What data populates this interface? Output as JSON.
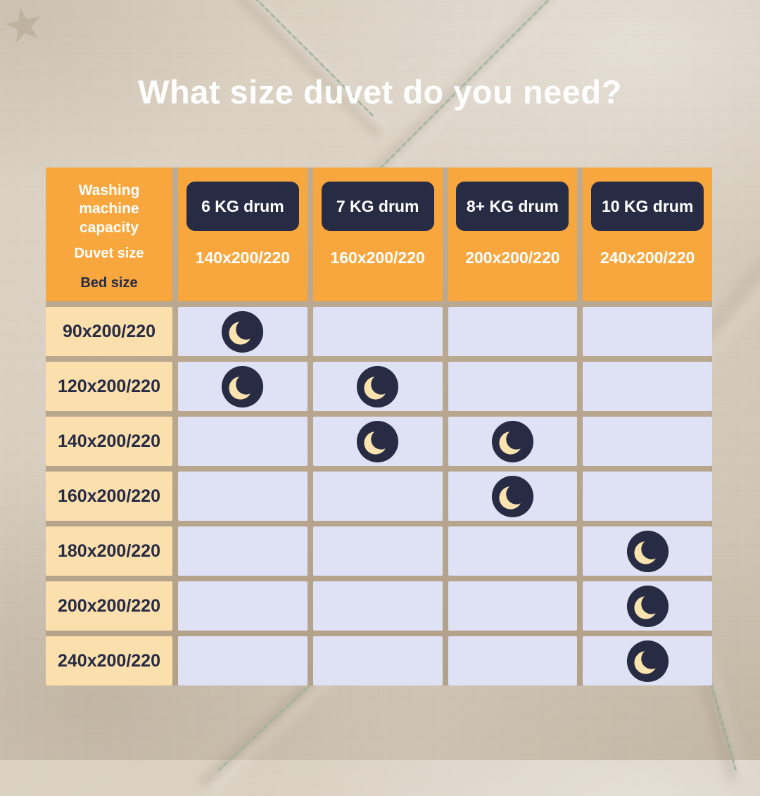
{
  "title": "What size duvet do you need?",
  "colors": {
    "orange": "#f8a73e",
    "navy": "#272c44",
    "row_label_cream": "#fbdfad",
    "cell_lavender": "#dfe1f5",
    "moon_cream": "#fae3ae",
    "stitch_green": "#9db39b",
    "background_beige": "#d6ccbc",
    "grid_gap_tan": "#b8a68d",
    "title_white": "#ffffff"
  },
  "icons": {
    "star_watermark": "★",
    "cell_marker": "crescent-moon"
  },
  "chart_data": {
    "type": "table",
    "title": "What size duvet do you need?",
    "corner": {
      "capacity_label": "Washing machine capacity",
      "duvet_label": "Duvet size",
      "bed_label": "Bed size"
    },
    "columns": [
      {
        "drum": "6 KG drum",
        "duvet_size": "140x200/220"
      },
      {
        "drum": "7 KG drum",
        "duvet_size": "160x200/220"
      },
      {
        "drum": "8+ KG drum",
        "duvet_size": "200x200/220"
      },
      {
        "drum": "10 KG drum",
        "duvet_size": "240x200/220"
      }
    ],
    "rows": [
      {
        "bed_size": "90x200/220",
        "moons": [
          1,
          0,
          0,
          0
        ]
      },
      {
        "bed_size": "120x200/220",
        "moons": [
          1,
          1,
          0,
          0
        ]
      },
      {
        "bed_size": "140x200/220",
        "moons": [
          0,
          1,
          1,
          0
        ]
      },
      {
        "bed_size": "160x200/220",
        "moons": [
          0,
          0,
          1,
          0
        ]
      },
      {
        "bed_size": "180x200/220",
        "moons": [
          0,
          0,
          0,
          1
        ]
      },
      {
        "bed_size": "200x200/220",
        "moons": [
          0,
          0,
          0,
          1
        ]
      },
      {
        "bed_size": "240x200/220",
        "moons": [
          0,
          0,
          0,
          1
        ]
      }
    ]
  }
}
